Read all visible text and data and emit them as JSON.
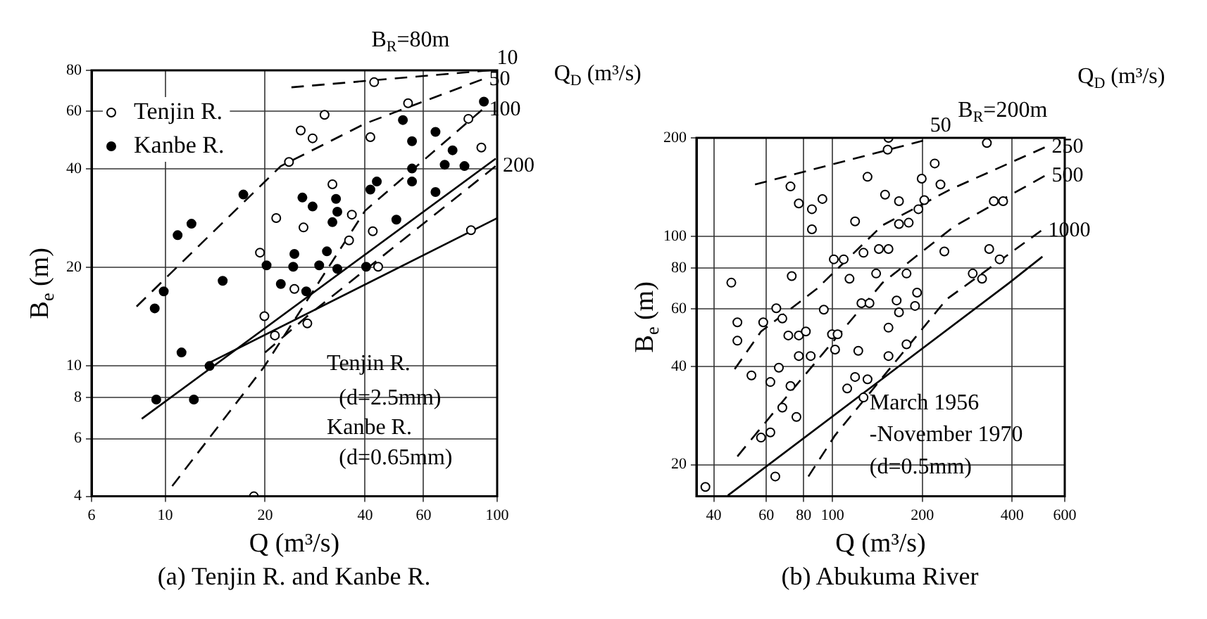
{
  "chart_data": [
    {
      "type": "scatter",
      "title": "(a) Tenjin R. and Kanbe R.",
      "xlabel": "Q (m³/s)",
      "ylabel": "B$_{e}$ (m)",
      "log": "xy",
      "grid": true,
      "legend": "top left",
      "xlim": [
        6,
        100
      ],
      "xticks": [
        6,
        10,
        20,
        40,
        60,
        100
      ],
      "ylim": [
        4,
        80
      ],
      "yticks": [
        4,
        6,
        8,
        10,
        20,
        40,
        60,
        80
      ],
      "annotations": [
        "B$_{R}$=80m",
        "Q$_{D}$ (m³/s)",
        "Tenjin R.",
        "(d=2.5mm)",
        "Kanbe R.",
        "(d=0.65mm)"
      ],
      "series": [
        {
          "name": "Tenjin R.",
          "type": "scatter",
          "marker": "circle",
          "color": "#ffffff",
          "x": [
            42.6,
            30.2,
            53.9,
            81.9,
            89.6,
            25.6,
            27.8,
            41.5,
            23.6,
            31.9,
            21.6,
            36.5,
            35.8,
            42.2,
            26.1,
            19.3,
            43.8,
            83.4,
            24.5,
            19.9,
            21.4,
            26.8,
            18.5
          ],
          "values": [
            73.6,
            58.5,
            63.5,
            56.9,
            46.5,
            52.4,
            49.6,
            50.0,
            42.0,
            35.9,
            28.3,
            29.0,
            24.2,
            25.8,
            26.5,
            22.2,
            20.1,
            26.0,
            17.2,
            14.2,
            12.4,
            13.5,
            4
          ]
        },
        {
          "name": "Kanbe R.",
          "type": "scatter",
          "marker": "circle",
          "color": "#000000",
          "x": [
            91.2,
            52.0,
            65.2,
            55.4,
            73.4,
            69.5,
            79.7,
            55.4,
            55.4,
            43.4,
            41.5,
            65.2,
            17.2,
            25.9,
            32.7,
            27.8,
            33.0,
            49.7,
            31.9,
            12.0,
            10.9,
            30.7,
            24.5,
            20.2,
            24.3,
            29.1,
            33.0,
            40.3,
            14.9,
            22.3,
            9.9,
            9.3,
            11.2,
            13.6,
            9.4,
            12.2,
            26.6
          ],
          "values": [
            64.2,
            56.4,
            51.9,
            48.6,
            45.6,
            41.2,
            40.8,
            40.1,
            36.6,
            36.6,
            34.6,
            34.0,
            33.4,
            32.7,
            32.4,
            30.7,
            29.6,
            28.0,
            27.5,
            27.2,
            25.1,
            22.4,
            22.0,
            20.3,
            20.1,
            20.3,
            19.8,
            20.1,
            18.2,
            17.8,
            16.9,
            15.0,
            11.0,
            10.0,
            7.9,
            7.9,
            16.9
          ]
        },
        {
          "name": "10",
          "type": "line",
          "line_style": "dashed",
          "color": "#000000",
          "x": [
            24,
            95
          ],
          "values": [
            71,
            80
          ]
        },
        {
          "name": "50",
          "type": "line",
          "line_style": "dashed",
          "color": "#000000",
          "x": [
            8.2,
            22.3,
            26.8,
            40,
            49,
            90
          ],
          "values": [
            15.2,
            40.8,
            44.8,
            55,
            59.5,
            75
          ]
        },
        {
          "name": "100",
          "type": "line",
          "line_style": "dashed",
          "color": "#000000",
          "x": [
            10.5,
            19.8,
            40,
            90
          ],
          "values": [
            4.3,
            9.9,
            29.8,
            60.6
          ]
        },
        {
          "name": "200",
          "type": "line",
          "line_style": "dashed",
          "color": "#000000",
          "x": [
            20,
            27,
            99
          ],
          "values": [
            11,
            14.3,
            40.8
          ]
        },
        {
          "type": "line",
          "line_style": "solid",
          "color": "#000000",
          "x": [
            8.5,
            99
          ],
          "values": [
            6.9,
            43
          ]
        },
        {
          "type": "line",
          "line_style": "solid",
          "color": "#000000",
          "x": [
            13.5,
            100
          ],
          "values": [
            10.2,
            28.3
          ]
        }
      ]
    },
    {
      "type": "scatter",
      "title": "(b) Abukuma River",
      "xlabel": "Q (m³/s)",
      "ylabel": "B$_{e}$ (m)",
      "log": "xy",
      "grid": true,
      "xlim": [
        35,
        600
      ],
      "xticks": [
        40,
        60,
        80,
        100,
        200,
        400,
        600
      ],
      "ylim": [
        16,
        200
      ],
      "yticks": [
        20,
        40,
        60,
        80,
        100,
        200
      ],
      "annotations": [
        "Q$_{D}$ (m³/s)",
        "B$_{R}$=200m",
        "March 1956",
        "-November 1970",
        "(d=0.5mm)"
      ],
      "series": [
        {
          "type": "scatter",
          "marker": "circle",
          "color": "#ffffff",
          "x": [
            154,
            153,
            329,
            131,
            72.3,
            220,
            199,
            230,
            77.1,
            85.3,
            92.5,
            150,
            167,
            203,
            194,
            347,
            373,
            119,
            85.3,
            167,
            180,
            101,
            109,
            127,
            143,
            154,
            237,
            335,
            363,
            45.8,
            73.0,
            114,
            140,
            177,
            295,
            317,
            64.8,
            93.5,
            125,
            133,
            164,
            192,
            48.0,
            48.0,
            58.6,
            67.9,
            71.1,
            77.1,
            81.4,
            53.5,
            66.1,
            77.1,
            84.5,
            99.6,
            104,
            61.9,
            72.3,
            67.9,
            75.7,
            57.6,
            61.9,
            64.3,
            37.5,
            154,
            167,
            189,
            102,
            122,
            154,
            177,
            112,
            119,
            131,
            127
          ],
          "values": [
            200,
            184,
            193,
            152,
            142,
            167,
            150,
            144,
            126,
            121,
            130,
            134,
            128,
            129,
            121,
            128,
            128,
            111,
            105,
            109,
            110,
            85.0,
            85.0,
            89.0,
            91.4,
            91.4,
            89.8,
            91.4,
            85.0,
            72.1,
            75.5,
            74.1,
            76.9,
            76.9,
            76.9,
            74.1,
            60.2,
            59.6,
            62.4,
            62.4,
            63.6,
            67.2,
            54.5,
            47.9,
            54.5,
            56.0,
            49.7,
            49.7,
            51.1,
            37.5,
            39.6,
            43.0,
            43.0,
            50.1,
            50.1,
            35.8,
            34.8,
            29.9,
            28.0,
            24.2,
            25.1,
            18.4,
            17.1,
            52.5,
            58.5,
            61.2,
            45.0,
            44.6,
            43.0,
            46.7,
            34.2,
            37.1,
            36.5,
            32.1
          ]
        },
        {
          "name": "50",
          "type": "line",
          "line_style": "dashed",
          "color": "#000000",
          "x": [
            55,
            201
          ],
          "values": [
            144,
            196
          ]
        },
        {
          "name": "250",
          "type": "line",
          "line_style": "dashed",
          "color": "#000000",
          "x": [
            47,
            57.6,
            88.5,
            147,
            248,
            514
          ],
          "values": [
            39.2,
            51.1,
            69,
            108,
            139,
            187
          ]
        },
        {
          "name": "500",
          "type": "line",
          "line_style": "dashed",
          "color": "#000000",
          "x": [
            48,
            71,
            147,
            255,
            514
          ],
          "values": [
            21.2,
            32.7,
            72,
            107,
            153
          ]
        },
        {
          "name": "1000",
          "type": "line",
          "line_style": "dashed",
          "color": "#000000",
          "x": [
            83,
            102,
            241,
            500
          ],
          "values": [
            18.4,
            24.6,
            64.1,
            104
          ]
        },
        {
          "type": "line",
          "line_style": "solid",
          "color": "#000000",
          "x": [
            44.6,
            391,
            505
          ],
          "values": [
            16.1,
            72,
            86.6
          ]
        }
      ]
    }
  ]
}
